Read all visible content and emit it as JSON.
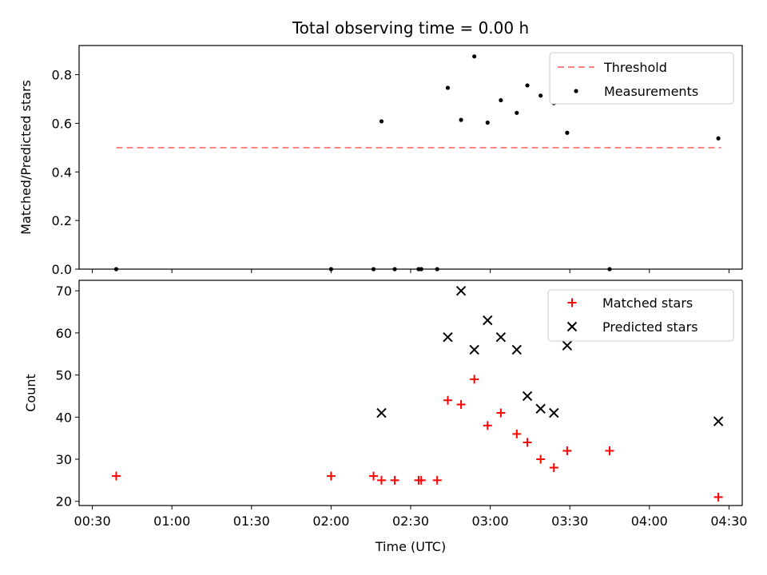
{
  "title": "Total observing time = 0.00 h",
  "colors": {
    "threshold": "#ff8080",
    "measurement": "#000000",
    "matched": "#ff0000",
    "predicted": "#000000"
  },
  "chart_data": [
    {
      "type": "line",
      "ylabel": "Matched/Predicted stars",
      "xlim": [
        "00:25",
        "04:35"
      ],
      "ylim": [
        0,
        0.92
      ],
      "yticks": [
        "0.0",
        "0.2",
        "0.4",
        "0.6",
        "0.8"
      ],
      "grid": false,
      "legend": "top-right",
      "legend_entries": [
        "Threshold",
        "Measurements"
      ],
      "threshold": {
        "name": "Threshold",
        "value": 0.5,
        "x_range": [
          "00:39",
          "04:27"
        ]
      },
      "series": [
        {
          "name": "Measurements",
          "points": [
            [
              "00:39",
              0.0
            ],
            [
              "02:00",
              0.0
            ],
            [
              "02:16",
              0.0
            ],
            [
              "02:19",
              0.608
            ],
            [
              "02:24",
              0.0
            ],
            [
              "02:33",
              0.0
            ],
            [
              "02:34",
              0.0
            ],
            [
              "02:40",
              0.0
            ],
            [
              "02:44",
              0.746
            ],
            [
              "02:49",
              0.614
            ],
            [
              "02:54",
              0.875
            ],
            [
              "02:59",
              0.603
            ],
            [
              "03:04",
              0.695
            ],
            [
              "03:10",
              0.643
            ],
            [
              "03:14",
              0.756
            ],
            [
              "03:19",
              0.714
            ],
            [
              "03:24",
              0.683
            ],
            [
              "03:29",
              0.561
            ],
            [
              "03:45",
              0.0
            ],
            [
              "04:26",
              0.538
            ]
          ]
        }
      ]
    },
    {
      "type": "scatter",
      "xlabel": "Time (UTC)",
      "ylabel": "Count",
      "xlim": [
        "00:25",
        "04:35"
      ],
      "ylim": [
        19,
        72.5
      ],
      "xticks": [
        "00:30",
        "01:00",
        "01:30",
        "02:00",
        "02:30",
        "03:00",
        "03:30",
        "04:00",
        "04:30"
      ],
      "yticks": [
        "20",
        "30",
        "40",
        "50",
        "60",
        "70"
      ],
      "grid": false,
      "legend": "top-right",
      "legend_entries": [
        "Matched stars",
        "Predicted stars"
      ],
      "series": [
        {
          "name": "Matched stars",
          "points": [
            [
              "00:39",
              26
            ],
            [
              "02:00",
              26
            ],
            [
              "02:16",
              26
            ],
            [
              "02:19",
              25
            ],
            [
              "02:24",
              25
            ],
            [
              "02:33",
              25
            ],
            [
              "02:34",
              25
            ],
            [
              "02:40",
              25
            ],
            [
              "02:44",
              44
            ],
            [
              "02:49",
              43
            ],
            [
              "02:54",
              49
            ],
            [
              "02:59",
              38
            ],
            [
              "03:04",
              41
            ],
            [
              "03:10",
              36
            ],
            [
              "03:14",
              34
            ],
            [
              "03:19",
              30
            ],
            [
              "03:24",
              28
            ],
            [
              "03:29",
              32
            ],
            [
              "03:45",
              32
            ],
            [
              "04:26",
              21
            ]
          ]
        },
        {
          "name": "Predicted stars",
          "points": [
            [
              "02:19",
              41
            ],
            [
              "02:44",
              59
            ],
            [
              "02:49",
              70
            ],
            [
              "02:54",
              56
            ],
            [
              "02:59",
              63
            ],
            [
              "03:04",
              59
            ],
            [
              "03:10",
              56
            ],
            [
              "03:14",
              45
            ],
            [
              "03:19",
              42
            ],
            [
              "03:24",
              41
            ],
            [
              "03:29",
              57
            ],
            [
              "04:26",
              39
            ]
          ]
        }
      ]
    }
  ]
}
